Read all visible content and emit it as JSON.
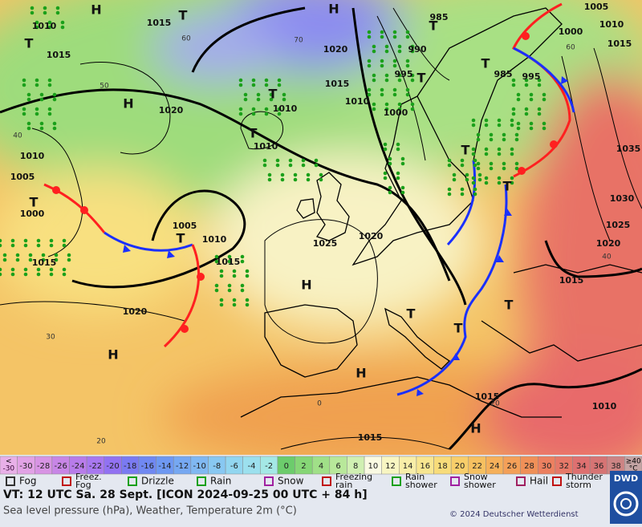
{
  "map": {
    "pressure_labels": [
      1010,
      1015,
      1015,
      1020,
      985,
      990,
      995,
      1015,
      1010,
      1000,
      1010,
      1020,
      1010,
      1010,
      1005,
      1000,
      1005,
      1010,
      1015,
      1015,
      1025,
      1020,
      1020,
      1015,
      1020,
      1025,
      1030,
      1035,
      1005,
      1010,
      1015,
      1000,
      985,
      995,
      1015,
      1010,
      1015
    ],
    "centers": [
      "H",
      "T",
      "T",
      "H",
      "T",
      "T",
      "T",
      "T",
      "H",
      "T",
      "T",
      "T",
      "H",
      "T",
      "T",
      "T",
      "H",
      "H",
      "H",
      "T",
      "T"
    ],
    "graticule_labels": [
      50,
      40,
      30,
      20,
      60,
      70,
      60,
      40,
      0,
      20
    ]
  },
  "scale": {
    "first": {
      "top": "<",
      "bottom": "-30",
      "color": "#e8b0e8"
    },
    "cells": [
      {
        "label": -30,
        "color": "#e2a2e6"
      },
      {
        "label": -28,
        "color": "#d894e4"
      },
      {
        "label": -26,
        "color": "#c886e6"
      },
      {
        "label": -24,
        "color": "#b87cea"
      },
      {
        "label": -22,
        "color": "#a878f0"
      },
      {
        "label": -20,
        "color": "#9272f2"
      },
      {
        "label": -18,
        "color": "#7a7af2"
      },
      {
        "label": -16,
        "color": "#7088f2"
      },
      {
        "label": -14,
        "color": "#6e98f2"
      },
      {
        "label": -12,
        "color": "#76a8f2"
      },
      {
        "label": -10,
        "color": "#80b8f2"
      },
      {
        "label": -8,
        "color": "#88c8f2"
      },
      {
        "label": -6,
        "color": "#92d6f0"
      },
      {
        "label": -4,
        "color": "#9ce0ee"
      },
      {
        "label": -2,
        "color": "#a4e8e6"
      },
      {
        "label": 0,
        "color": "#6ccc6c"
      },
      {
        "label": 2,
        "color": "#86d676"
      },
      {
        "label": 4,
        "color": "#a0e088"
      },
      {
        "label": 6,
        "color": "#b8e89a"
      },
      {
        "label": 8,
        "color": "#d0f0b2"
      },
      {
        "label": 10,
        "color": "#fafae2"
      },
      {
        "label": 12,
        "color": "#f8f6c2"
      },
      {
        "label": 14,
        "color": "#f8eea8"
      },
      {
        "label": 16,
        "color": "#f8e690"
      },
      {
        "label": 18,
        "color": "#f8dc7a"
      },
      {
        "label": 20,
        "color": "#f8ce6a"
      },
      {
        "label": 22,
        "color": "#f6c060"
      },
      {
        "label": 24,
        "color": "#f6b05a"
      },
      {
        "label": 26,
        "color": "#f4a058"
      },
      {
        "label": 28,
        "color": "#f09058"
      },
      {
        "label": 30,
        "color": "#ec8060"
      },
      {
        "label": 32,
        "color": "#e67868"
      },
      {
        "label": 34,
        "color": "#de7070"
      },
      {
        "label": 36,
        "color": "#d67474"
      },
      {
        "label": 38,
        "color": "#cc8484"
      }
    ],
    "last": {
      "top": "≥40",
      "bottom": "°C",
      "color": "#c4a4a4"
    }
  },
  "legend": [
    {
      "lines": [
        "Fog"
      ]
    },
    {
      "lines": [
        "Freez.",
        "Fog"
      ]
    },
    {
      "lines": [
        "Drizzle"
      ]
    },
    {
      "lines": [
        "Rain"
      ]
    },
    {
      "lines": [
        "Snow"
      ]
    },
    {
      "lines": [
        "Freezing",
        "rain"
      ]
    },
    {
      "lines": [
        "Rain",
        "shower"
      ]
    },
    {
      "lines": [
        "Snow",
        "shower"
      ]
    },
    {
      "lines": [
        "Hail"
      ]
    },
    {
      "lines": [
        "Thunder",
        "storm"
      ]
    }
  ],
  "footer": {
    "valid_time": "VT: 12 UTC Sa.  28 Sept. [ICON 2024-09-25  00 UTC + 84 h]",
    "description": "Sea level pressure (hPa), Weather, Temperature 2m (°C)",
    "copyright": "© 2024 Deutscher Wetterdienst",
    "logo": "DWD"
  }
}
